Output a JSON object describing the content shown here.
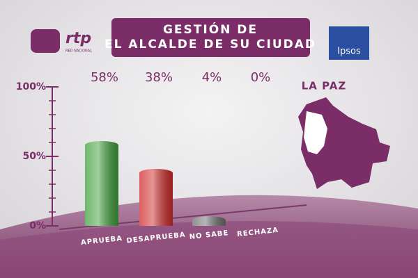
{
  "chart_data": {
    "type": "bar",
    "title": [
      "GESTIÓN DE",
      "EL ALCALDE DE SU CIUDAD"
    ],
    "region": "LA PAZ",
    "brand": "rtp",
    "brand_subtitle": "RED NACIONAL",
    "pollster": "Ipsos",
    "categories": [
      "APRUEBA",
      "DESAPRUEBA",
      "NO SABE",
      "RECHAZA"
    ],
    "values": [
      58,
      38,
      4,
      0
    ],
    "value_labels": [
      "58%",
      "38%",
      "4%",
      "0%"
    ],
    "colors": [
      "#3f9f3c",
      "#d02a2a",
      "#6e6e6e",
      "#999999"
    ],
    "ylim": [
      0,
      100
    ],
    "yticks": [
      {
        "value": 0,
        "label": "0%"
      },
      {
        "value": 50,
        "label": "50%"
      },
      {
        "value": 100,
        "label": "100%"
      }
    ]
  }
}
